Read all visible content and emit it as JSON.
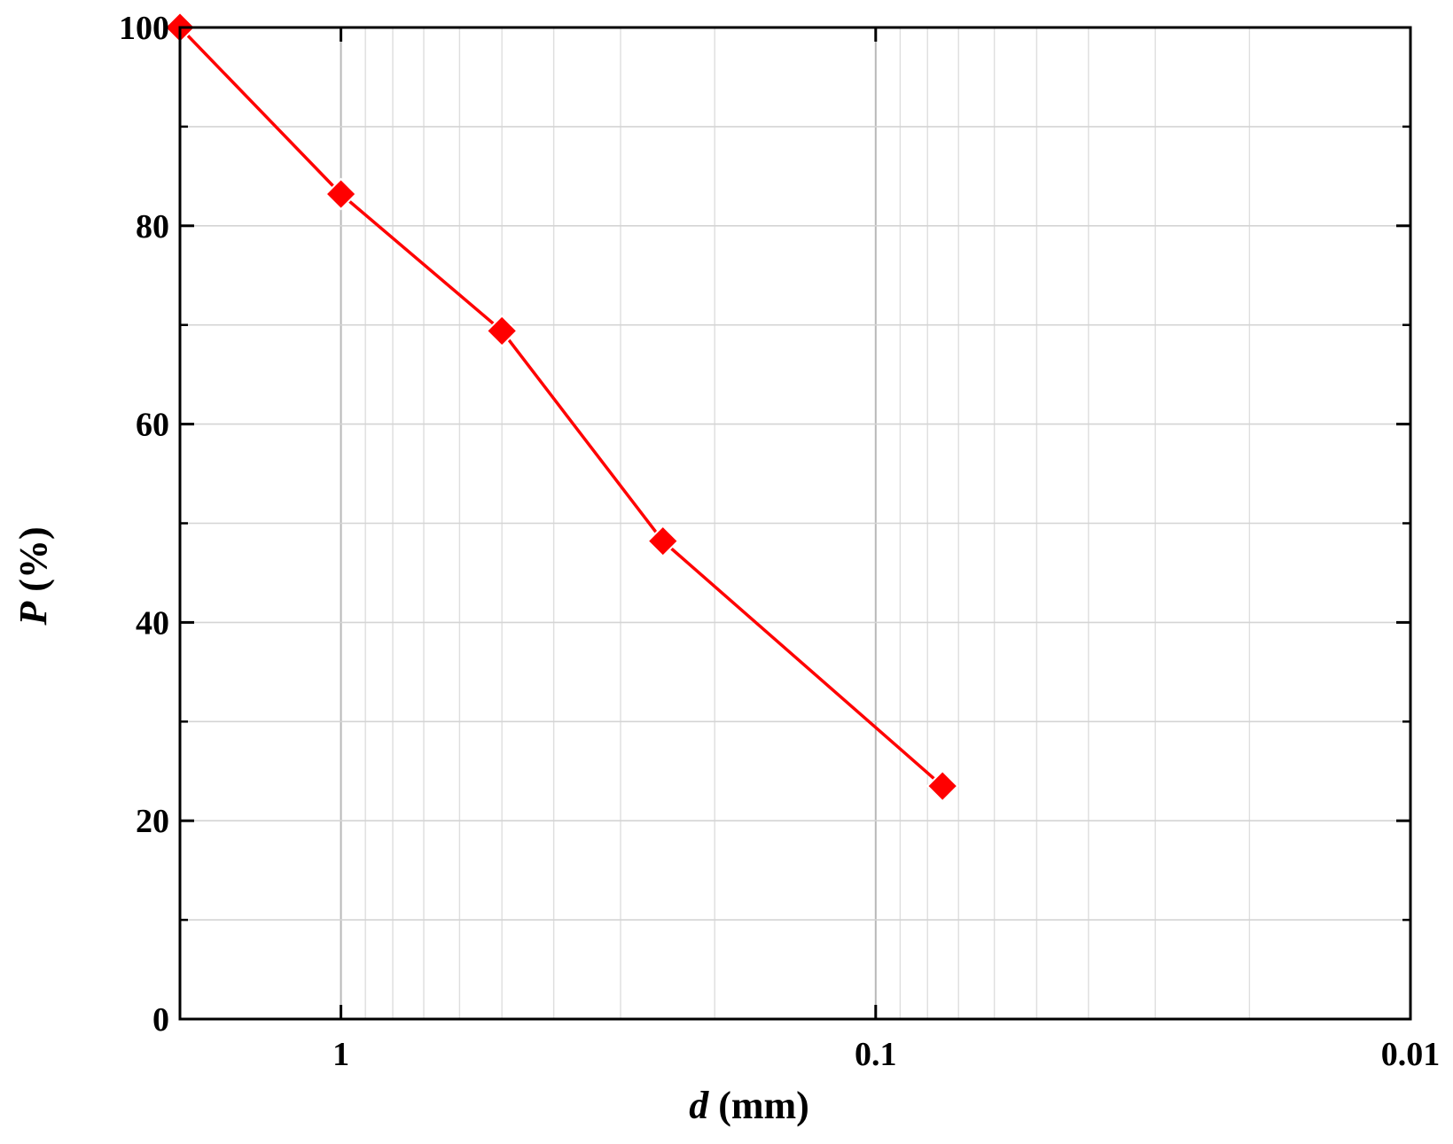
{
  "chart_data": {
    "type": "line",
    "title": "",
    "xlabel": {
      "var": "d",
      "unit": " (mm)"
    },
    "ylabel": {
      "var": "P",
      "unit": " (%)"
    },
    "xscale": "log",
    "x_reversed": true,
    "xlim": [
      2,
      0.01
    ],
    "ylim": [
      0,
      100
    ],
    "grid": true,
    "x_ticks": [
      {
        "value": 1,
        "label": "1"
      },
      {
        "value": 0.1,
        "label": "0.1"
      },
      {
        "value": 0.01,
        "label": "0.01"
      }
    ],
    "y_ticks": [
      {
        "value": 0,
        "label": "0"
      },
      {
        "value": 20,
        "label": "20"
      },
      {
        "value": 40,
        "label": "40"
      },
      {
        "value": 60,
        "label": "60"
      },
      {
        "value": 80,
        "label": "80"
      },
      {
        "value": 100,
        "label": "100"
      }
    ],
    "y_minor_ticks": [
      10,
      30,
      50,
      70,
      90
    ],
    "series": [
      {
        "color": "#ff0000",
        "marker": "diamond",
        "x": [
          2,
          1,
          0.5,
          0.25,
          0.075
        ],
        "y": [
          100,
          83.2,
          69.4,
          48.2,
          23.5
        ]
      }
    ]
  }
}
